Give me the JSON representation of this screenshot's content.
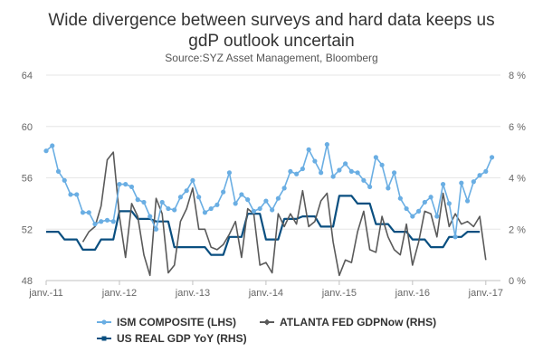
{
  "chart_data": {
    "type": "line",
    "title": "Wide divergence between surveys and hard data keeps us gdP outlook uncertain",
    "title_lines": [
      "Wide divergence between surveys and hard data keeps us",
      "gdP outlook uncertain"
    ],
    "subtitle": "Source:SYZ Asset Management, Bloomberg",
    "x_tick_labels": [
      "janv.-11",
      "janv.-12",
      "janv.-13",
      "janv.-14",
      "janv.-15",
      "janv.-16",
      "janv.-17"
    ],
    "y_left": {
      "ticks": [
        "48",
        "52",
        "56",
        "60",
        "64"
      ],
      "ylim": [
        48,
        64
      ]
    },
    "y_right": {
      "ticks": [
        "0 %",
        "2 %",
        "4 %",
        "6 %",
        "8 %"
      ],
      "ylim": [
        0,
        8
      ]
    },
    "grid": true,
    "legend_position": "bottom",
    "series": [
      {
        "name": "ISM COMPOSITE (LHS)",
        "axis": "left",
        "color": "#6aaee3",
        "marker": "circle",
        "start": "2011-01",
        "values": [
          58.1,
          58.5,
          56.5,
          55.8,
          54.7,
          54.7,
          53.3,
          53.3,
          52.4,
          52.6,
          52.7,
          52.6,
          55.5,
          55.5,
          55.3,
          54.3,
          54.1,
          53.0,
          52.0,
          54.1,
          53.6,
          53.5,
          54.5,
          55.0,
          55.8,
          54.5,
          53.3,
          53.6,
          53.9,
          54.9,
          56.4,
          54.0,
          54.7,
          54.3,
          53.4,
          53.6,
          54.2,
          53.5,
          54.4,
          55.2,
          56.5,
          56.3,
          56.7,
          58.2,
          57.3,
          56.4,
          58.6,
          56.1,
          56.6,
          57.1,
          56.5,
          56.4,
          55.8,
          55.3,
          57.6,
          57.0,
          55.2,
          56.4,
          54.4,
          53.6,
          53.0,
          53.4,
          54.1,
          54.5,
          53.0,
          55.5,
          54.0,
          51.4,
          55.6,
          54.2,
          55.7,
          56.2,
          56.5,
          57.6
        ]
      },
      {
        "name": "ATLANTA FED GDPNow (RHS)",
        "axis": "right",
        "color": "#5a5a5a",
        "marker": "diamond",
        "start": "2011-07",
        "values": [
          1.5,
          1.9,
          2.1,
          2.9,
          4.7,
          5.0,
          2.5,
          0.9,
          3.0,
          2.5,
          1.0,
          0.2,
          3.2,
          2.6,
          0.3,
          0.6,
          2.3,
          2.8,
          3.6,
          2.0,
          2.0,
          1.3,
          1.2,
          1.4,
          1.8,
          2.3,
          0.9,
          2.8,
          2.6,
          0.6,
          0.7,
          0.3,
          2.6,
          2.1,
          2.6,
          2.2,
          3.5,
          2.1,
          2.3,
          3.1,
          3.4,
          1.5,
          0.2,
          0.8,
          0.7,
          1.9,
          2.7,
          1.2,
          1.1,
          2.5,
          1.7,
          1.2,
          1.0,
          2.2,
          0.6,
          1.5,
          2.7,
          2.6,
          1.7,
          3.4,
          2.1,
          2.6,
          2.2,
          2.3,
          2.1,
          2.5,
          0.8
        ]
      },
      {
        "name": "US REAL GDP YoY (RHS)",
        "axis": "right",
        "color": "#0a4f80",
        "marker": "square",
        "start": "2011-01",
        "values": [
          1.9,
          1.9,
          1.9,
          1.6,
          1.6,
          1.6,
          1.2,
          1.2,
          1.2,
          1.6,
          1.6,
          1.6,
          2.7,
          2.7,
          2.7,
          2.4,
          2.4,
          2.4,
          2.3,
          2.3,
          2.3,
          1.3,
          1.3,
          1.3,
          1.3,
          1.3,
          1.3,
          1.0,
          1.0,
          1.0,
          1.7,
          1.7,
          1.7,
          2.6,
          2.6,
          2.6,
          1.6,
          1.6,
          1.6,
          2.4,
          2.4,
          2.4,
          2.5,
          2.5,
          2.5,
          2.1,
          2.1,
          2.1,
          3.3,
          3.3,
          3.3,
          3.0,
          3.0,
          3.0,
          2.2,
          2.2,
          2.2,
          1.9,
          1.9,
          1.9,
          1.6,
          1.6,
          1.6,
          1.3,
          1.3,
          1.3,
          1.7,
          1.7,
          1.7,
          1.9,
          1.9,
          1.9
        ]
      }
    ]
  }
}
